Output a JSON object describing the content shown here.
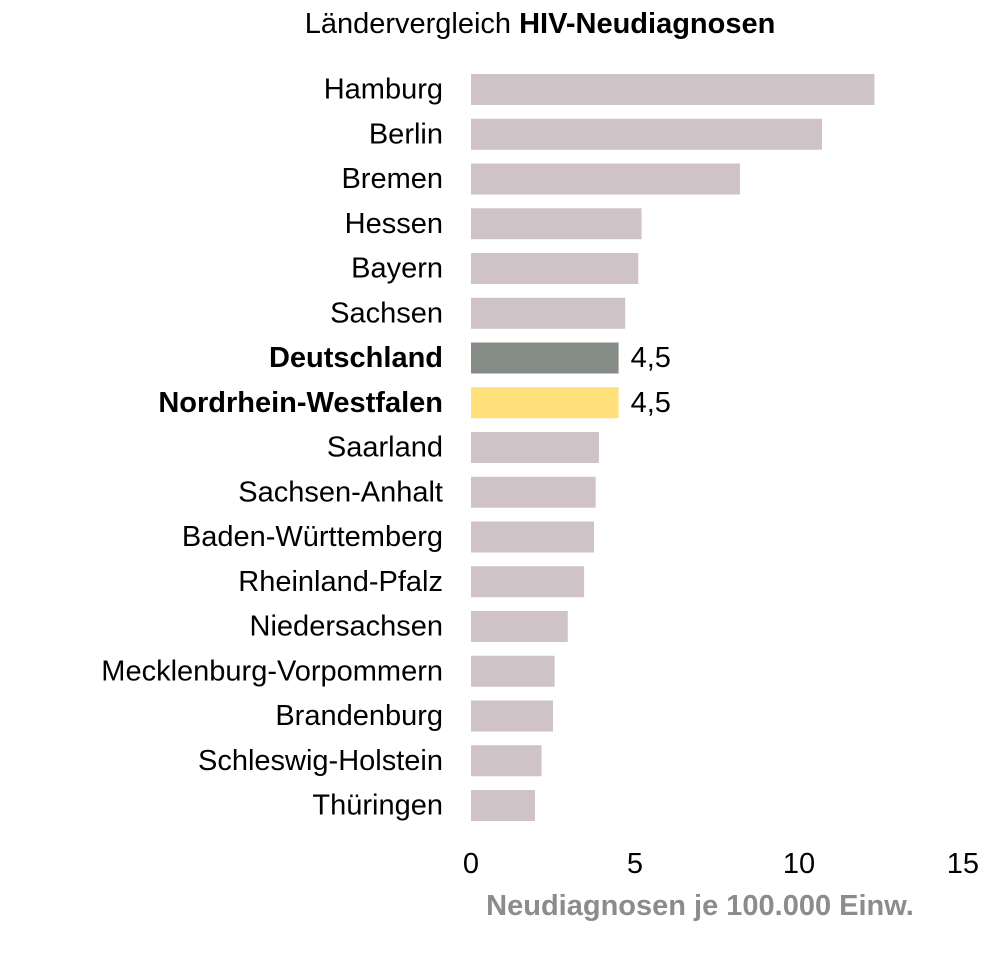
{
  "chart_data": {
    "type": "bar",
    "orientation": "horizontal",
    "title": {
      "prefix": "Ländervergleich ",
      "emphasis": "HIV-Neudiagnosen"
    },
    "xlabel": "Neudiagnosen je 100.000 Einw.",
    "ylabel": "",
    "xlim": [
      0,
      15
    ],
    "xticks": [
      "0",
      "5",
      "10",
      "15"
    ],
    "grid": false,
    "legend": "none",
    "categories": [
      "Hamburg",
      "Berlin",
      "Bremen",
      "Hessen",
      "Bayern",
      "Sachsen",
      "Deutschland",
      "Nordrhein-Westfalen",
      "Saarland",
      "Sachsen-Anhalt",
      "Baden-Württemberg",
      "Rheinland-Pfalz",
      "Niedersachsen",
      "Mecklenburg-Vorpommern",
      "Brandenburg",
      "Schleswig-Holstein",
      "Thüringen"
    ],
    "values": [
      12.3,
      10.7,
      8.2,
      5.2,
      5.1,
      4.7,
      4.5,
      4.5,
      3.9,
      3.8,
      3.75,
      3.45,
      2.95,
      2.55,
      2.5,
      2.15,
      1.95
    ],
    "highlights": [
      "Deutschland",
      "Nordrhein-Westfalen"
    ],
    "data_labels": {
      "Deutschland": "4,5",
      "Nordrhein-Westfalen": "4,5"
    },
    "colors": {
      "default": "#d0c3c8",
      "Deutschland": "#858b85",
      "Nordrhein-Westfalen": "#ffe07a",
      "axis_title": "#8c8c8c",
      "text": "#000000"
    }
  }
}
